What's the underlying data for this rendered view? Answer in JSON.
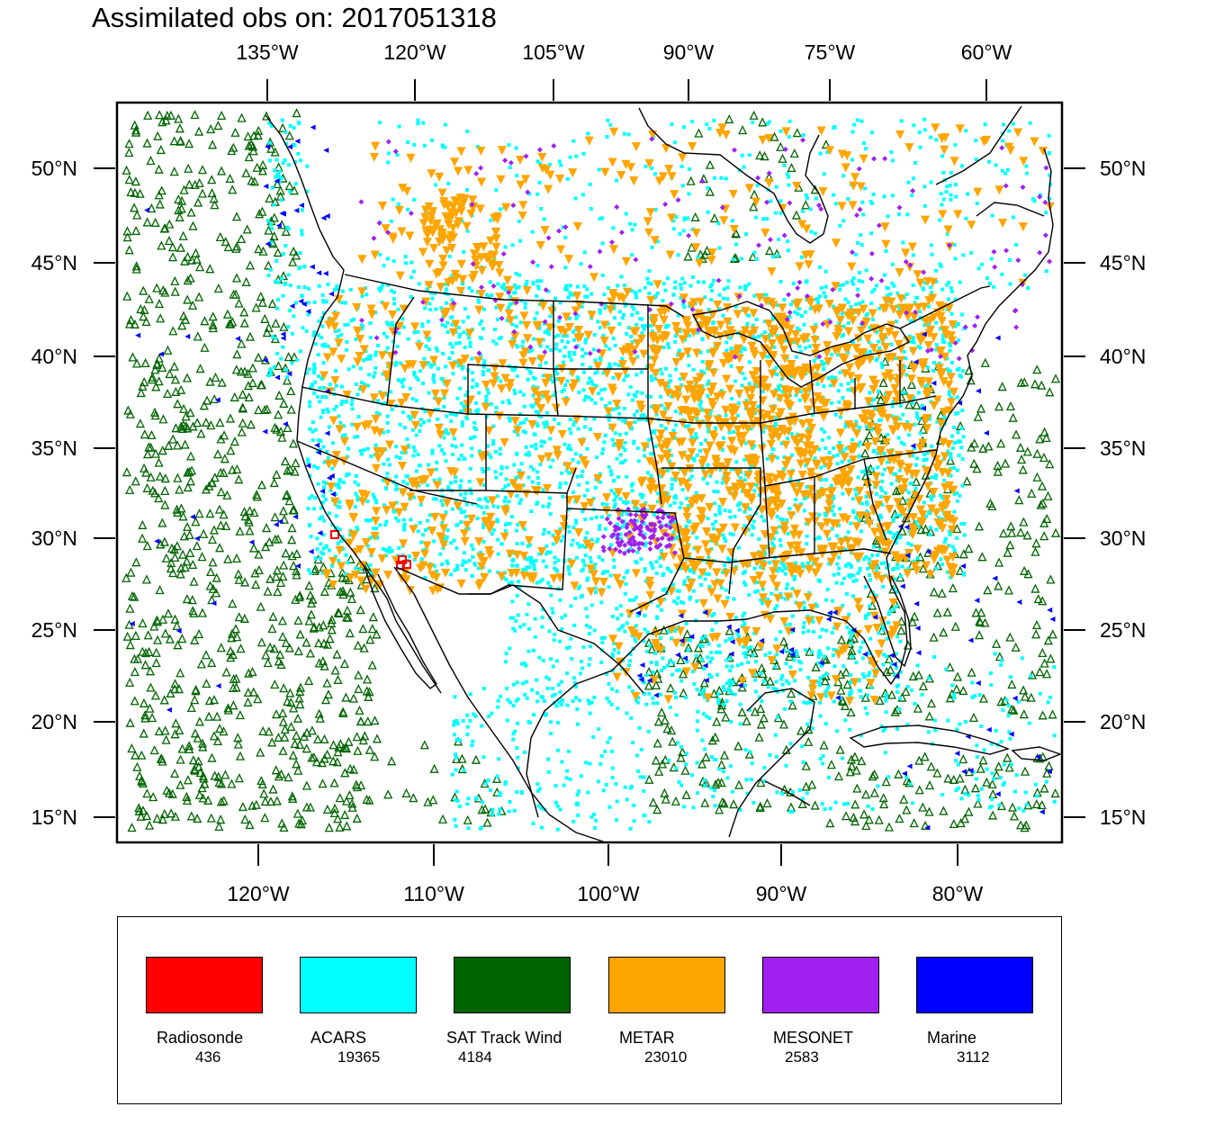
{
  "title": "Assimilated obs on: 2017051318",
  "map": {
    "top_lon_labels": [
      "135°W",
      "120°W",
      "105°W",
      "90°W",
      "75°W",
      "60°W"
    ],
    "bottom_lon_labels": [
      "120°W",
      "110°W",
      "100°W",
      "90°W",
      "80°W"
    ],
    "left_lat_labels": [
      "50°N",
      "45°N",
      "40°N",
      "35°N",
      "30°N",
      "25°N",
      "20°N",
      "15°N"
    ],
    "right_lat_labels": [
      "50°N",
      "45°N",
      "40°N",
      "35°N",
      "30°N",
      "25°N",
      "20°N",
      "15°N"
    ]
  },
  "legend": [
    {
      "name": "Radiosonde",
      "count": "436",
      "color": "#ff0000"
    },
    {
      "name": "ACARS",
      "count": "19365",
      "color": "#00ffff"
    },
    {
      "name": "SAT Track Wind",
      "count": "4184",
      "color": "#006400"
    },
    {
      "name": "METAR",
      "count": "23010",
      "color": "#ffa500"
    },
    {
      "name": "MESONET",
      "count": "2583",
      "color": "#a020f0"
    },
    {
      "name": "Marine",
      "count": "3112",
      "color": "#0000ff"
    }
  ]
}
